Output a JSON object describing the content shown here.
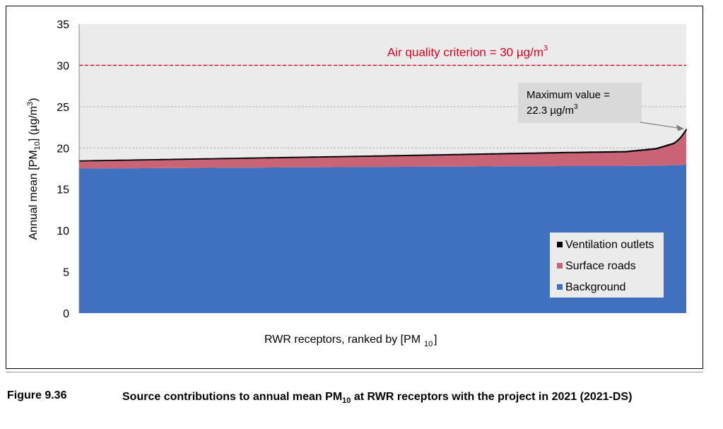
{
  "chart_data": {
    "type": "area",
    "stacked": true,
    "title": "",
    "xlabel": "RWR receptors, ranked by [PM",
    "xlabel_sub": "10",
    "xlabel_tail": "]",
    "ylabel_main": "Annual mean [PM",
    "ylabel_sub": "10",
    "ylabel_mid": "] (µg/m",
    "ylabel_sup": "3",
    "ylabel_tail": ")",
    "ylim": [
      0,
      35
    ],
    "yticks": [
      "0",
      "5",
      "10",
      "15",
      "20",
      "25",
      "30",
      "35"
    ],
    "grid": true,
    "legend_position": "bottom-right",
    "n_receptors": 300,
    "series": [
      {
        "name": "Ventilation outlets",
        "color": "#000000",
        "x_rank_fraction": [
          0,
          0.5,
          0.8,
          0.9,
          0.95,
          0.98,
          0.99,
          1.0
        ],
        "values": [
          0.05,
          0.06,
          0.07,
          0.08,
          0.09,
          0.1,
          0.12,
          0.15
        ]
      },
      {
        "name": "Surface roads",
        "color": "#c86476",
        "x_rank_fraction": [
          0,
          0.5,
          0.8,
          0.9,
          0.95,
          0.98,
          0.99,
          1.0
        ],
        "values": [
          0.9,
          1.3,
          1.6,
          1.7,
          2.0,
          2.6,
          3.2,
          4.1
        ]
      },
      {
        "name": "Background",
        "color": "#4071c0",
        "x_rank_fraction": [
          0,
          0.5,
          0.8,
          0.9,
          0.95,
          0.98,
          0.99,
          1.0
        ],
        "values": [
          17.5,
          17.7,
          17.8,
          17.8,
          17.85,
          17.9,
          17.9,
          18.0
        ]
      }
    ],
    "criterion": {
      "value": 30,
      "label": "Air quality criterion = 30 µg/m",
      "label_sup": "3",
      "color": "#e0001b"
    },
    "annotation": {
      "line1": "Maximum value =",
      "line2": "22.3 µg/m",
      "line2_sup": "3",
      "target_value": 22.3
    }
  },
  "caption": {
    "number": "Figure 9.36",
    "text_main": "Source contributions to annual mean PM",
    "text_sub": "10",
    "text_tail": " at RWR receptors with the project in 2021 (2021-DS)"
  }
}
